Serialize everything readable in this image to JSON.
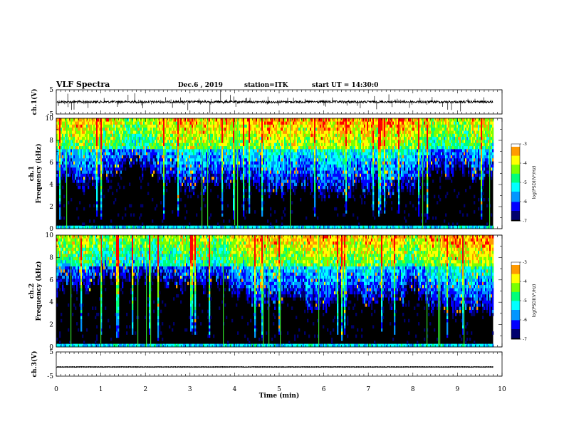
{
  "header": {
    "title": "VLF Spectra",
    "date": "Dec.6 , 2019",
    "station": "station=ITK",
    "start": "start UT = 14:30:0"
  },
  "chart_data": [
    {
      "type": "line",
      "panel": "ch1-waveform",
      "ylabel": "ch.1(V)",
      "ylim": [
        -5,
        5
      ],
      "yticks": [
        "5",
        "-5"
      ],
      "baseline": 0
    },
    {
      "type": "heatmap",
      "panel": "ch1-spectrogram",
      "ylabel": "ch.1\nFrequency (kHz)",
      "ylabel_line1": "ch.1",
      "ylabel_line2": "Frequency (kHz)",
      "ylim": [
        0,
        10
      ],
      "yticks": [
        "0",
        "2",
        "4",
        "6",
        "8",
        "10"
      ],
      "xlim": [
        0,
        10
      ],
      "colorbar": {
        "label": "log(PSD)(V²/Hz)",
        "range": [
          -7,
          -3
        ],
        "ticks": [
          "-3",
          "-4",
          "-5",
          "-6",
          "-7"
        ]
      }
    },
    {
      "type": "heatmap",
      "panel": "ch2-spectrogram",
      "ylabel": "ch.2\nFrequency (kHz)",
      "ylabel_line1": "ch.2",
      "ylabel_line2": "Frequency (kHz)",
      "ylim": [
        0,
        10
      ],
      "yticks": [
        "0",
        "2",
        "4",
        "6",
        "8",
        "10"
      ],
      "xlim": [
        0,
        10
      ],
      "colorbar": {
        "label": "log(PSD)(V²/Hz)",
        "range": [
          -7,
          -3
        ],
        "ticks": [
          "-3",
          "-4",
          "-5",
          "-6",
          "-7"
        ]
      }
    },
    {
      "type": "line",
      "panel": "ch3-waveform",
      "ylabel": "ch.3(V)",
      "ylim": [
        -5,
        5
      ],
      "yticks": [
        "5",
        "-5"
      ],
      "baseline": -1.2
    }
  ],
  "xaxis": {
    "label": "Time (min)",
    "range": [
      0,
      10
    ],
    "ticks": [
      "0",
      "1",
      "2",
      "3",
      "4",
      "5",
      "6",
      "7",
      "8",
      "9",
      "10"
    ],
    "data_end": 9.8
  },
  "colors": {
    "background": "#ffffff",
    "axis": "#000000",
    "colormap": [
      "#000000",
      "#00006e",
      "#0000ff",
      "#0096ff",
      "#00ffff",
      "#00ff7a",
      "#7aff00",
      "#ffff00",
      "#ff9a00",
      "#ff0000",
      "#ffffff"
    ]
  }
}
